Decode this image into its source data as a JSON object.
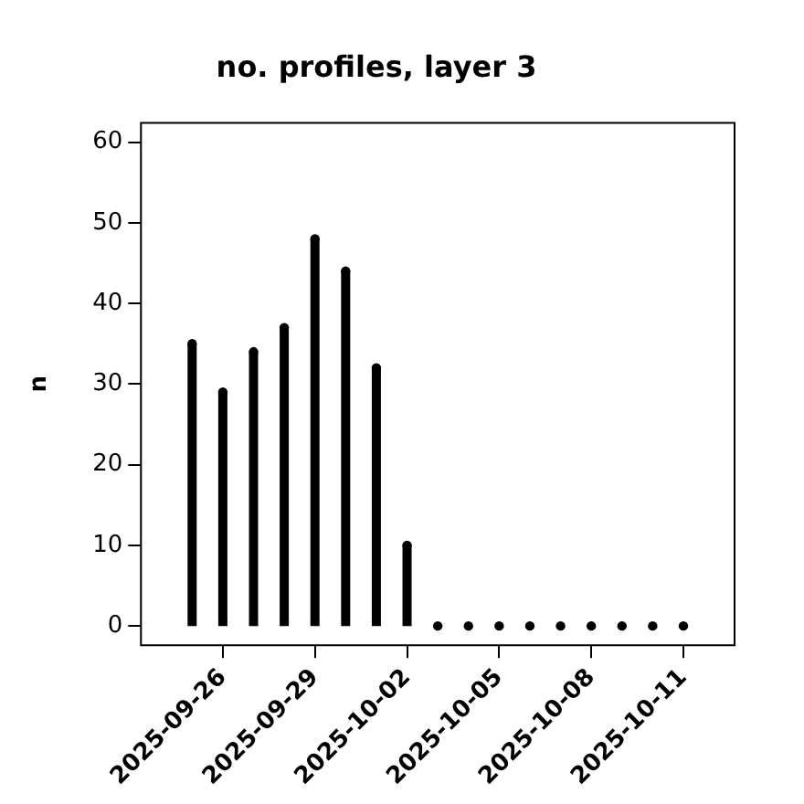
{
  "chart_data": {
    "type": "lollipop",
    "title": "no. profiles, layer 3",
    "ylabel": "n",
    "x": [
      "2025-09-25",
      "2025-09-26",
      "2025-09-27",
      "2025-09-28",
      "2025-09-29",
      "2025-09-30",
      "2025-10-01",
      "2025-10-02",
      "2025-10-03",
      "2025-10-04",
      "2025-10-05",
      "2025-10-06",
      "2025-10-07",
      "2025-10-08",
      "2025-10-09",
      "2025-10-10",
      "2025-10-11"
    ],
    "values": [
      35,
      29,
      34,
      37,
      48,
      44,
      32,
      10,
      0,
      0,
      0,
      0,
      0,
      0,
      0,
      0,
      0
    ],
    "color": "#000000",
    "marker": "circle",
    "xlim": [
      "2025-09-23T08:00",
      "2025-10-12T16:00"
    ],
    "xticks": [
      "2025-09-26",
      "2025-09-29",
      "2025-10-02",
      "2025-10-05",
      "2025-10-08",
      "2025-10-11"
    ],
    "ylim": [
      -2.4,
      62.4
    ],
    "yticks": [
      0,
      10,
      20,
      30,
      40,
      50,
      60
    ],
    "legend": false
  }
}
